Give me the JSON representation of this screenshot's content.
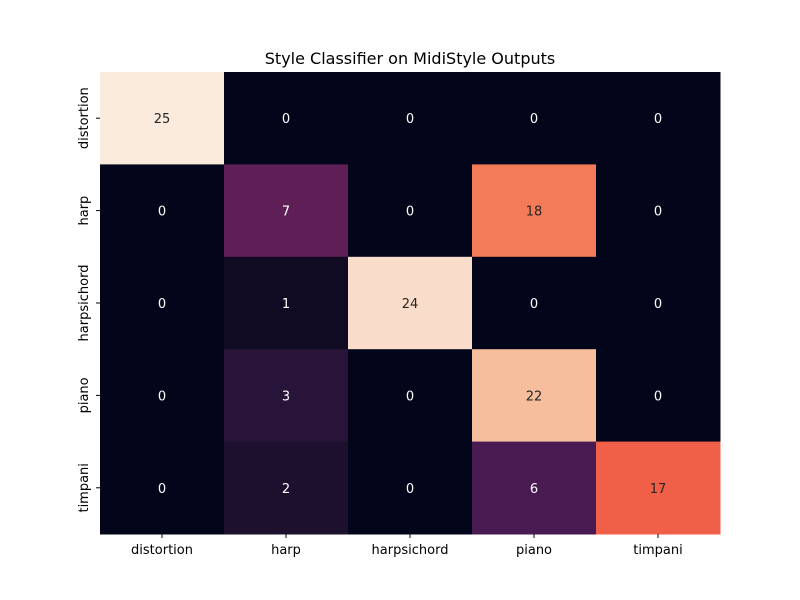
{
  "chart_data": {
    "type": "heatmap",
    "title": "Style Classifier on MidiStyle Outputs",
    "xlabel": "",
    "ylabel": "",
    "x_categories": [
      "distortion",
      "harp",
      "harpsichord",
      "piano",
      "timpani"
    ],
    "y_categories": [
      "distortion",
      "harp",
      "harpsichord",
      "piano",
      "timpani"
    ],
    "values": [
      [
        25,
        0,
        0,
        0,
        0
      ],
      [
        0,
        7,
        0,
        18,
        0
      ],
      [
        0,
        1,
        24,
        0,
        0
      ],
      [
        0,
        3,
        0,
        22,
        0
      ],
      [
        0,
        2,
        0,
        6,
        17
      ]
    ],
    "value_range": [
      0,
      25
    ],
    "colormap": "rocket",
    "colorbar": false,
    "grid": false
  }
}
